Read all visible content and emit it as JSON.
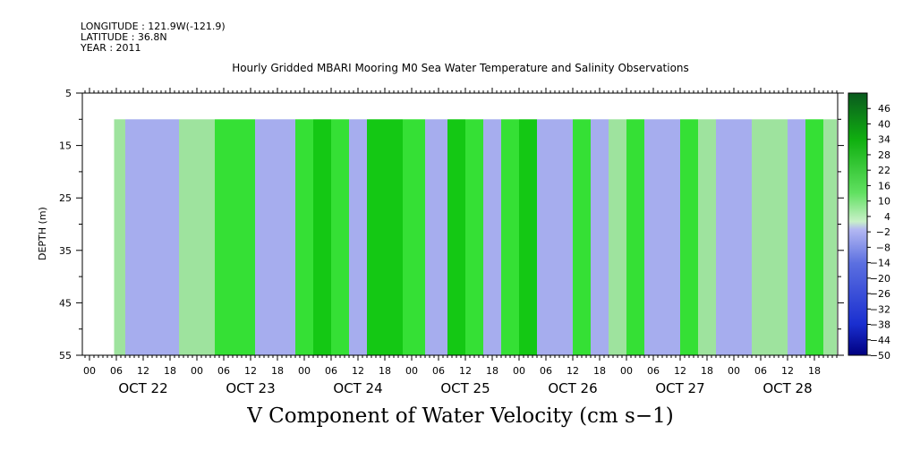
{
  "header": {
    "longitude": "LONGITUDE : 121.9W(-121.9)",
    "latitude": "LATITUDE : 36.8N",
    "year": "YEAR : 2011"
  },
  "chart_data": {
    "type": "heatmap",
    "title": "Hourly Gridded MBARI Mooring M0 Sea Water Temperature and Salinity Observations",
    "xlabel": "V Component of Water Velocity (cm s−1)",
    "ylabel": "DEPTH (m)",
    "ylim": [
      55,
      5
    ],
    "y_ticks": [
      5,
      15,
      25,
      35,
      45,
      55
    ],
    "x_hour_labels": [
      "00",
      "06",
      "12",
      "18",
      "00",
      "06",
      "12",
      "18",
      "00",
      "06",
      "12",
      "18",
      "00",
      "06",
      "12",
      "18",
      "00",
      "06",
      "12",
      "18",
      "00",
      "06",
      "12",
      "18",
      "00",
      "06",
      "12",
      "18"
    ],
    "x_date_labels": [
      "OCT 22",
      "OCT 23",
      "OCT 24",
      "OCT 25",
      "OCT 26",
      "OCT 27",
      "OCT 28"
    ],
    "data_start_hour": 5.5,
    "data_end_hour": 167,
    "data_top_depth": 10,
    "colorbar_labels": [
      "46",
      "40",
      "34",
      "28",
      "22",
      "16",
      "10",
      "4",
      "−2",
      "−8",
      "−14",
      "−20",
      "−26",
      "−32",
      "−38",
      "−44",
      "−50"
    ],
    "colorbar_levels": [
      -50,
      52
    ],
    "colors": {
      "negative": "#a6adee",
      "positive_light": "#9ee39e",
      "positive": "#35e035",
      "positive_strong": "#14c814"
    },
    "profile_hours": [
      6,
      10,
      14,
      18,
      22,
      26,
      30,
      34,
      40,
      44,
      48,
      52,
      56,
      60,
      64,
      68,
      72,
      78,
      82,
      86,
      90,
      94,
      98,
      102,
      106,
      110,
      114,
      118,
      122,
      126,
      130,
      134,
      138,
      142,
      146,
      150,
      154,
      158,
      162,
      166
    ],
    "mean_v_cm_s": [
      4,
      -8,
      -12,
      -6,
      3,
      2,
      8,
      10,
      -6,
      -4,
      10,
      14,
      6,
      -4,
      12,
      14,
      8,
      -6,
      12,
      10,
      -8,
      6,
      12,
      -10,
      -8,
      8,
      -12,
      2,
      8,
      -10,
      -6,
      10,
      2,
      -8,
      -4,
      2,
      4,
      -10,
      8,
      4
    ]
  }
}
